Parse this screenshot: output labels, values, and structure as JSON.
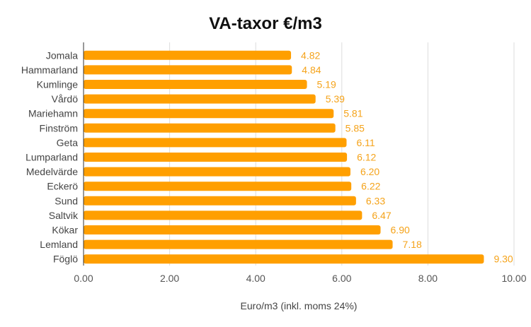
{
  "chart_data": {
    "type": "bar",
    "orientation": "horizontal",
    "title": "VA-taxor €/m3",
    "xlabel": "Euro/m3 (inkl. moms 24%)",
    "ylabel": "",
    "xlim": [
      0,
      10
    ],
    "xticks": [
      "0.00",
      "2.00",
      "4.00",
      "6.00",
      "8.00",
      "10.00"
    ],
    "grid": true,
    "legend": "none",
    "bar_color": "#ff9f00",
    "label_color": "#f5a31a",
    "categories": [
      "Jomala",
      "Hammarland",
      "Kumlinge",
      "Vårdö",
      "Mariehamn",
      "Finström",
      "Geta",
      "Lumparland",
      "Medelvärde",
      "Eckerö",
      "Sund",
      "Saltvik",
      "Kökar",
      "Lemland",
      "Föglö"
    ],
    "values": [
      4.82,
      4.84,
      5.19,
      5.39,
      5.81,
      5.85,
      6.11,
      6.12,
      6.2,
      6.22,
      6.33,
      6.47,
      6.9,
      7.18,
      9.3
    ],
    "value_labels": [
      "4.82",
      "4.84",
      "5.19",
      "5.39",
      "5.81",
      "5.85",
      "6.11",
      "6.12",
      "6.20",
      "6.22",
      "6.33",
      "6.47",
      "6.90",
      "7.18",
      "9.30"
    ]
  }
}
